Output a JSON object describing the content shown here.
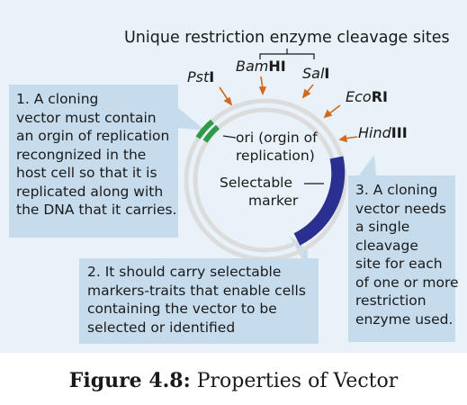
{
  "title": "Unique restriction enzyme cleavage sites",
  "enzymes": [
    {
      "italic": "Pst",
      "bold": "I"
    },
    {
      "italic": "Bam",
      "bold": "HI"
    },
    {
      "italic": "Sal",
      "bold": "I"
    },
    {
      "italic": "Eco",
      "bold": "RI"
    },
    {
      "italic": "Hind",
      "bold": "III"
    }
  ],
  "callout1": [
    "1. A cloning",
    "vector must contain",
    "an orgin of replication",
    "recongnized in the",
    "host cell so that it is",
    "replicated along with",
    "the DNA that it carries."
  ],
  "callout2": [
    "2. It should carry selectable",
    "markers-traits that enable cells",
    "containing the vector to be",
    "selected or identified"
  ],
  "callout3": [
    "3. A cloning",
    "vector needs",
    "a single",
    "cleavage",
    "site for each",
    "of one or more",
    "restriction",
    "enzyme used."
  ],
  "ori_label": [
    "ori (orgin of",
    "replication)"
  ],
  "marker_label": [
    "Selectable",
    "marker"
  ],
  "caption": {
    "bold": "Figure 4.8:",
    "text": " Properties of Vector"
  },
  "colors": {
    "ring": "#dcdcdc",
    "marker": "#2b2f8f",
    "ori": "#2e9a48",
    "arrow": "#d2691e",
    "callout": "#c6dced",
    "background": "#e9f2f8"
  }
}
